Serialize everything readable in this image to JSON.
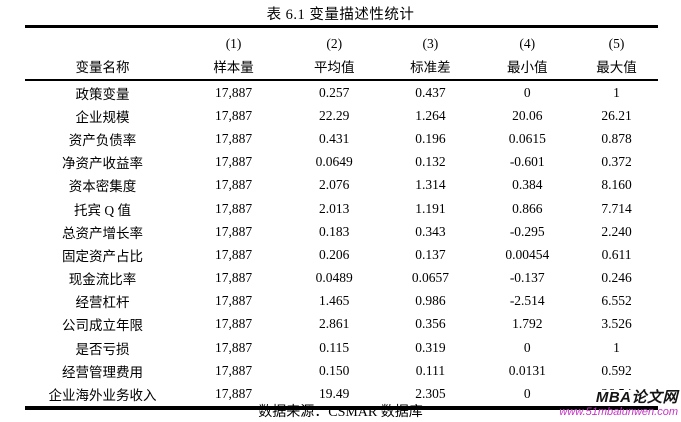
{
  "table": {
    "title": "表 6.1  变量描述性统计",
    "header_numbers": [
      "",
      "(1)",
      "(2)",
      "(3)",
      "(4)",
      "(5)"
    ],
    "header_labels": [
      "变量名称",
      "样本量",
      "平均值",
      "标准差",
      "最小值",
      "最大值"
    ],
    "rows": [
      [
        "政策变量",
        "17,887",
        "0.257",
        "0.437",
        "0",
        "1"
      ],
      [
        "企业规模",
        "17,887",
        "22.29",
        "1.264",
        "20.06",
        "26.21"
      ],
      [
        "资产负债率",
        "17,887",
        "0.431",
        "0.196",
        "0.0615",
        "0.878"
      ],
      [
        "净资产收益率",
        "17,887",
        "0.0649",
        "0.132",
        "-0.601",
        "0.372"
      ],
      [
        "资本密集度",
        "17,887",
        "2.076",
        "1.314",
        "0.384",
        "8.160"
      ],
      [
        "托宾 Q 值",
        "17,887",
        "2.013",
        "1.191",
        "0.866",
        "7.714"
      ],
      [
        "总资产增长率",
        "17,887",
        "0.183",
        "0.343",
        "-0.295",
        "2.240"
      ],
      [
        "固定资产占比",
        "17,887",
        "0.206",
        "0.137",
        "0.00454",
        "0.611"
      ],
      [
        "现金流比率",
        "17,887",
        "0.0489",
        "0.0657",
        "-0.137",
        "0.246"
      ],
      [
        "经营杠杆",
        "17,887",
        "1.465",
        "0.986",
        "-2.514",
        "6.552"
      ],
      [
        "公司成立年限",
        "17,887",
        "2.861",
        "0.356",
        "1.792",
        "3.526"
      ],
      [
        "是否亏损",
        "17,887",
        "0.115",
        "0.319",
        "0",
        "1"
      ],
      [
        "经营管理费用",
        "17,887",
        "0.150",
        "0.111",
        "0.0131",
        "0.592"
      ],
      [
        "企业海外业务收入",
        "17,887",
        "19.49",
        "2.305",
        "0",
        "26.54"
      ]
    ],
    "source_note": "数据来源：CSMAR 数据库"
  },
  "watermark": {
    "site_name": "MBA论文网",
    "site_url": "www.51mbalunwen.com",
    "site_name_color": "#141414",
    "site_url_color": "#c733c7"
  },
  "chart_data": {
    "type": "table",
    "title": "表 6.1 变量描述性统计",
    "columns": [
      "变量名称",
      "样本量",
      "平均值",
      "标准差",
      "最小值",
      "最大值"
    ],
    "column_numbers": [
      "(1)",
      "(2)",
      "(3)",
      "(4)",
      "(5)"
    ],
    "rows": [
      {
        "variable": "政策变量",
        "n": "17,887",
        "mean": 0.257,
        "sd": 0.437,
        "min": 0,
        "max": 1
      },
      {
        "variable": "企业规模",
        "n": "17,887",
        "mean": 22.29,
        "sd": 1.264,
        "min": 20.06,
        "max": 26.21
      },
      {
        "variable": "资产负债率",
        "n": "17,887",
        "mean": 0.431,
        "sd": 0.196,
        "min": 0.0615,
        "max": 0.878
      },
      {
        "variable": "净资产收益率",
        "n": "17,887",
        "mean": 0.0649,
        "sd": 0.132,
        "min": -0.601,
        "max": 0.372
      },
      {
        "variable": "资本密集度",
        "n": "17,887",
        "mean": 2.076,
        "sd": 1.314,
        "min": 0.384,
        "max": 8.16
      },
      {
        "variable": "托宾 Q 值",
        "n": "17,887",
        "mean": 2.013,
        "sd": 1.191,
        "min": 0.866,
        "max": 7.714
      },
      {
        "variable": "总资产增长率",
        "n": "17,887",
        "mean": 0.183,
        "sd": 0.343,
        "min": -0.295,
        "max": 2.24
      },
      {
        "variable": "固定资产占比",
        "n": "17,887",
        "mean": 0.206,
        "sd": 0.137,
        "min": 0.00454,
        "max": 0.611
      },
      {
        "variable": "现金流比率",
        "n": "17,887",
        "mean": 0.0489,
        "sd": 0.0657,
        "min": -0.137,
        "max": 0.246
      },
      {
        "variable": "经营杠杆",
        "n": "17,887",
        "mean": 1.465,
        "sd": 0.986,
        "min": -2.514,
        "max": 6.552
      },
      {
        "variable": "公司成立年限",
        "n": "17,887",
        "mean": 2.861,
        "sd": 0.356,
        "min": 1.792,
        "max": 3.526
      },
      {
        "variable": "是否亏损",
        "n": "17,887",
        "mean": 0.115,
        "sd": 0.319,
        "min": 0,
        "max": 1
      },
      {
        "variable": "经营管理费用",
        "n": "17,887",
        "mean": 0.15,
        "sd": 0.111,
        "min": 0.0131,
        "max": 0.592
      },
      {
        "variable": "企业海外业务收入",
        "n": "17,887",
        "mean": 19.49,
        "sd": 2.305,
        "min": 0,
        "max": 26.54
      }
    ],
    "footer": "数据来源：CSMAR 数据库"
  }
}
